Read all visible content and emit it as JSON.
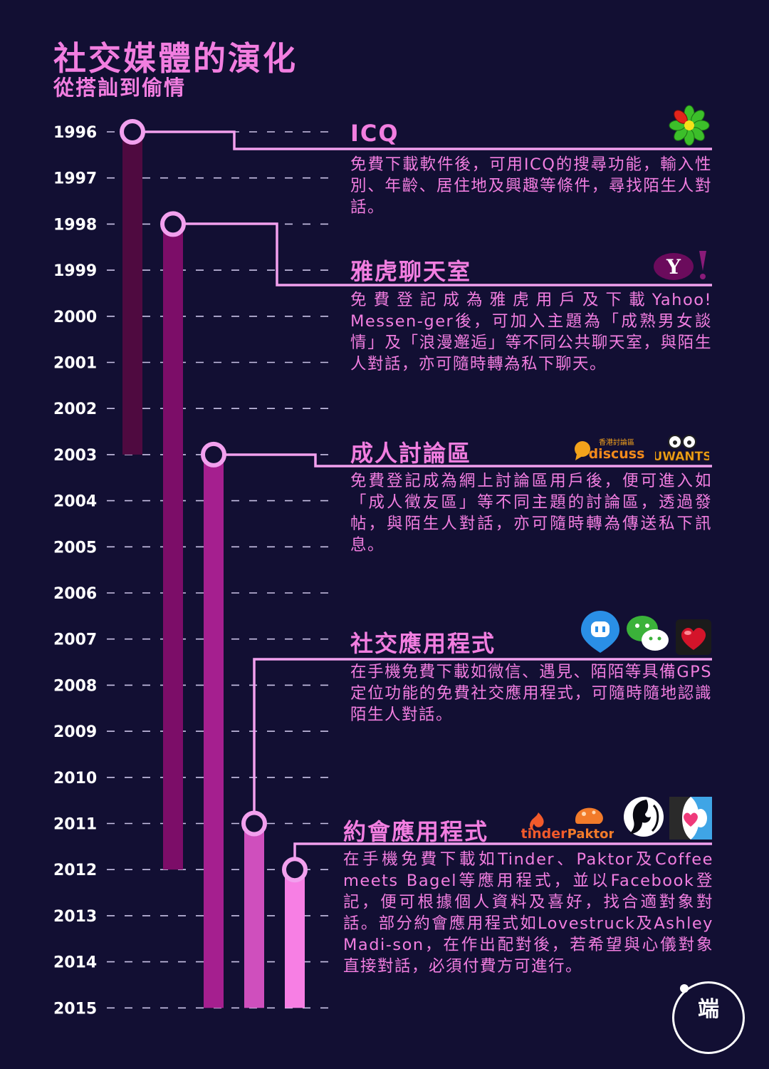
{
  "header": {
    "title": "社交媒體的演化",
    "subtitle": "從搭訕到偷情"
  },
  "timeline": {
    "years": [
      "1996",
      "1997",
      "1998",
      "1999",
      "2000",
      "2001",
      "2002",
      "2003",
      "2004",
      "2005",
      "2006",
      "2007",
      "2008",
      "2009",
      "2010",
      "2011",
      "2012",
      "2013",
      "2014",
      "2015"
    ],
    "bars": [
      {
        "start": 1996,
        "end": 2003,
        "color": "#4f0a40"
      },
      {
        "start": 1998,
        "end": 2012,
        "color": "#7c0d68"
      },
      {
        "start": 2003,
        "end": 2015,
        "color": "#a51f8f"
      },
      {
        "start": 2011,
        "end": 2015,
        "color": "#cf4fbd"
      },
      {
        "start": 2012,
        "end": 2015,
        "color": "#f77fe4"
      }
    ]
  },
  "events": [
    {
      "heading": "ICQ",
      "description": "免費下載軟件後，可用ICQ的搜尋功能，輸入性別、年齡、居住地及興趣等條件，尋找陌生人對話。",
      "icons": [
        "icq-flower-icon"
      ]
    },
    {
      "heading": "雅虎聊天室",
      "description": "免費登記成為雅虎用戶及下載Yahoo! Messen-ger後，可加入主題為「成熟男女談情」及「浪漫邂逅」等不同公共聊天室，與陌生人對話，亦可隨時轉為私下聊天。",
      "icons": [
        "yahoo-logo-icon"
      ],
      "logo_text": "Y!"
    },
    {
      "heading": "成人討論區",
      "description": "免費登記成為網上討論區用戶後，便可進入如「成人徵友區」等不同主題的討論區，透過發帖，與陌生人對話，亦可隨時轉為傳送私下訊息。",
      "icons": [
        "discuss-logo-icon",
        "uwants-logo-icon"
      ],
      "logos": [
        "香港討論區",
        "discuss",
        "UWANTS"
      ]
    },
    {
      "heading": "社交應用程式",
      "description": "在手機免費下載如微信、遇見、陌陌等具備GPS定位功能的免費社交應用程式，可隨時隨地認識陌生人對話。",
      "icons": [
        "momo-app-icon",
        "wechat-app-icon",
        "yujian-app-icon"
      ]
    },
    {
      "heading": "約會應用程式",
      "description": "在手機免費下載如Tinder、Paktor及Coffee meets Bagel等應用程式，並以Facebook登記，便可根據個人資料及喜好，找合適對象對話。部分約會應用程式如Lovestruck及Ashley Madi-son，在作出配對後，若希望與心儀對象直接對話，必須付費方可進行。",
      "icons": [
        "tinder-logo-icon",
        "paktor-logo-icon",
        "ashley-madison-icon",
        "coffee-meets-bagel-icon"
      ],
      "logos": [
        "tinder",
        "Paktor"
      ]
    }
  ],
  "colors": {
    "background": "#120f33",
    "accent": "#f27ee0",
    "connector": "#f2a0ee"
  },
  "brand": {
    "text": "端",
    "icon": "initium-logo-icon"
  }
}
